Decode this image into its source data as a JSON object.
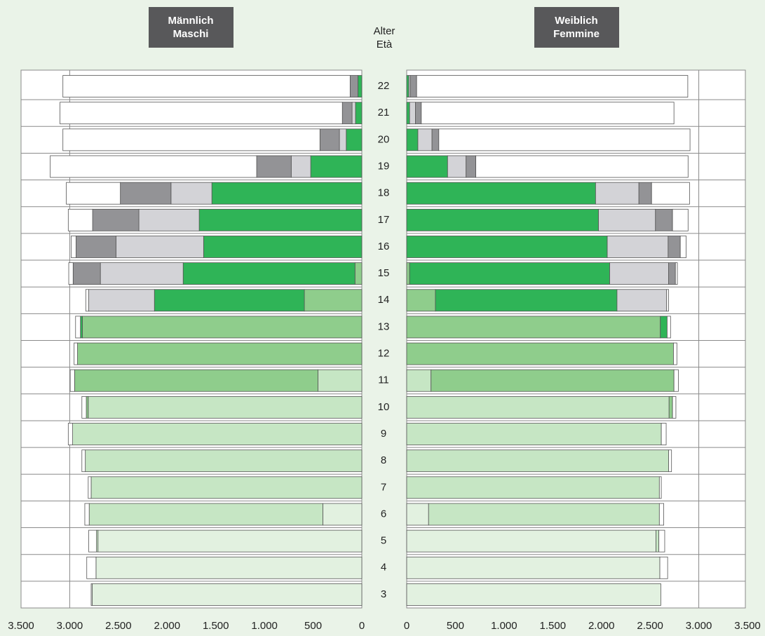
{
  "chart_data": [
    {
      "type": "bar",
      "orientation": "horizontal",
      "direction": "left",
      "title": [
        "Männlich",
        "Maschi"
      ],
      "ylabel": [
        "Alter",
        "Età"
      ],
      "categories": [
        "22",
        "21",
        "20",
        "19",
        "18",
        "17",
        "16",
        "15",
        "14",
        "13",
        "12",
        "11",
        "10",
        "9",
        "8",
        "7",
        "6",
        "5",
        "4",
        "3"
      ],
      "xlim": [
        0,
        3500
      ],
      "xticks": [
        0,
        500,
        {
          "value": 1000,
          "label": "1.000"
        },
        {
          "value": 1500,
          "label": "1.500"
        },
        {
          "value": 2000,
          "label": "2.000"
        },
        {
          "value": 2500,
          "label": "2.500"
        },
        {
          "value": 3000,
          "label": "3.000"
        },
        {
          "value": 3500,
          "label": "3.500"
        }
      ],
      "grid": [
        3000
      ],
      "series": [
        {
          "color": "#e2f1e0",
          "values": [
            0,
            0,
            0,
            0,
            0,
            0,
            0,
            0,
            0,
            0,
            0,
            0,
            0,
            0,
            0,
            0,
            400,
            2710,
            2730,
            2770
          ]
        },
        {
          "color": "#c6e6c4",
          "values": [
            0,
            0,
            0,
            0,
            0,
            0,
            0,
            0,
            0,
            0,
            0,
            450,
            2810,
            2970,
            2840,
            2780,
            2400,
            15,
            0,
            0
          ]
        },
        {
          "color": "#8fcd8c",
          "values": [
            0,
            0,
            0,
            0,
            0,
            0,
            0,
            70,
            590,
            2870,
            2920,
            2500,
            20,
            0,
            0,
            0,
            0,
            0,
            0,
            0
          ]
        },
        {
          "color": "#2fb457",
          "values": [
            40,
            65,
            160,
            525,
            1540,
            1670,
            1625,
            1765,
            1540,
            20,
            0,
            0,
            0,
            0,
            0,
            0,
            0,
            0,
            0,
            0
          ]
        },
        {
          "color": "#d3d3d7",
          "values": [
            0,
            35,
            70,
            200,
            420,
            620,
            900,
            850,
            675,
            0,
            0,
            0,
            0,
            0,
            0,
            0,
            0,
            0,
            0,
            0
          ]
        },
        {
          "color": "#939396",
          "values": [
            80,
            100,
            200,
            355,
            520,
            475,
            410,
            280,
            0,
            0,
            0,
            0,
            0,
            0,
            0,
            0,
            0,
            0,
            0,
            0
          ]
        },
        {
          "color": "#ffffff",
          "values": [
            2950,
            2900,
            2640,
            2120,
            555,
            250,
            50,
            45,
            30,
            50,
            35,
            45,
            45,
            45,
            35,
            30,
            45,
            80,
            95,
            10
          ]
        }
      ]
    },
    {
      "type": "bar",
      "orientation": "horizontal",
      "direction": "right",
      "title": [
        "Weiblich",
        "Femmine"
      ],
      "xlim": [
        0,
        3500
      ],
      "xticks": [
        0,
        500,
        {
          "value": 1000,
          "label": "1.000"
        },
        {
          "value": 1500,
          "label": "1.500"
        },
        {
          "value": 2000,
          "label": "2.000"
        },
        {
          "value": 2500,
          "label": "2.500"
        },
        {
          "value": 3000,
          "label": "3.000"
        },
        {
          "value": 3500,
          "label": "3.500"
        }
      ],
      "grid": [
        3000
      ],
      "series": [
        {
          "color": "#e2f1e0",
          "values": [
            0,
            0,
            0,
            0,
            0,
            0,
            0,
            0,
            0,
            0,
            0,
            0,
            0,
            0,
            0,
            0,
            225,
            2560,
            2600,
            2610
          ]
        },
        {
          "color": "#c6e6c4",
          "values": [
            0,
            0,
            0,
            0,
            0,
            0,
            0,
            0,
            0,
            0,
            0,
            250,
            2695,
            2615,
            2690,
            2595,
            2370,
            30,
            0,
            0
          ]
        },
        {
          "color": "#8fcd8c",
          "values": [
            0,
            0,
            0,
            0,
            0,
            0,
            0,
            30,
            295,
            2605,
            2740,
            2495,
            35,
            0,
            0,
            0,
            0,
            0,
            0,
            0
          ]
        },
        {
          "color": "#2fb457",
          "values": [
            22,
            30,
            115,
            420,
            1940,
            1970,
            2060,
            2055,
            1865,
            70,
            0,
            0,
            0,
            0,
            0,
            0,
            0,
            0,
            0,
            0
          ]
        },
        {
          "color": "#d3d3d7",
          "values": [
            15,
            60,
            145,
            190,
            445,
            585,
            625,
            605,
            510,
            0,
            0,
            0,
            0,
            0,
            0,
            0,
            0,
            0,
            0,
            0
          ]
        },
        {
          "color": "#939396",
          "values": [
            65,
            60,
            70,
            100,
            130,
            175,
            125,
            70,
            0,
            0,
            0,
            0,
            0,
            0,
            0,
            0,
            0,
            0,
            0,
            0
          ]
        },
        {
          "color": "#ffffff",
          "values": [
            2785,
            2595,
            2580,
            2180,
            390,
            160,
            60,
            20,
            20,
            35,
            35,
            45,
            35,
            50,
            30,
            20,
            45,
            60,
            80,
            0
          ]
        }
      ]
    }
  ]
}
